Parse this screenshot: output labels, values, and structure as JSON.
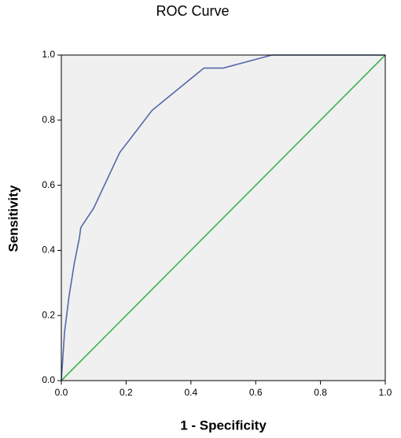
{
  "chart_data": {
    "type": "line",
    "title": "ROC Curve",
    "xlabel": "1 - Specificity",
    "ylabel": "Sensitivity",
    "xlim": [
      0,
      1
    ],
    "ylim": [
      0,
      1
    ],
    "xticks": [
      {
        "value": 0,
        "label": "0.0"
      },
      0.2,
      0.4,
      0.6,
      0.8,
      {
        "value": 1,
        "label": "1.0"
      }
    ],
    "yticks": [
      {
        "value": 0,
        "label": "0.0"
      },
      0.2,
      0.4,
      0.6,
      0.8,
      {
        "value": 1,
        "label": "1.0"
      }
    ],
    "series": [
      {
        "color": "#5468a8",
        "x": [
          0,
          0.01,
          0.024,
          0.04,
          0.056,
          0.06,
          0.1,
          0.18,
          0.28,
          0.44,
          0.5,
          0.65,
          1
        ],
        "values": [
          0,
          0.15,
          0.26,
          0.36,
          0.44,
          0.47,
          0.53,
          0.7,
          0.83,
          0.96,
          0.96,
          1,
          1
        ]
      },
      {
        "color": "#3cb44b",
        "x": [
          0,
          1
        ],
        "values": [
          0,
          1
        ]
      }
    ]
  }
}
